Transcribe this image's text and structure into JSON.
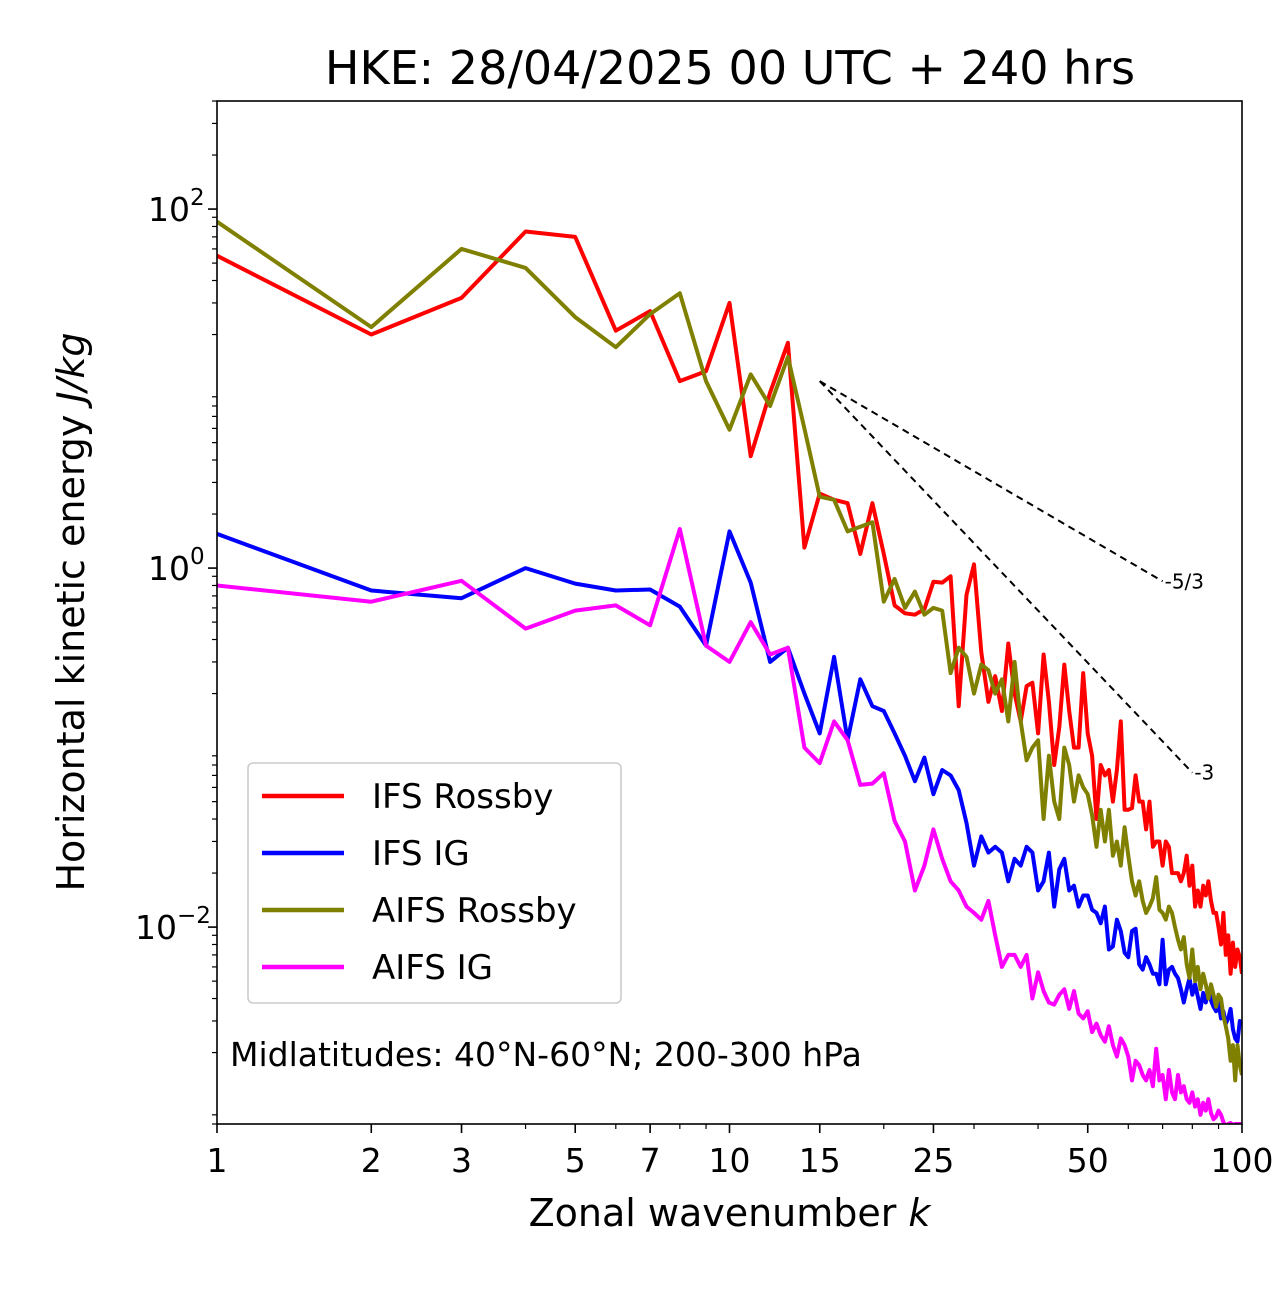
{
  "chart_data": {
    "type": "line",
    "title": "HKE: 28/04/2025 00 UTC + 240 hrs",
    "xlabel": "Zonal wavenumber",
    "xlabel_italic": "k",
    "ylabel": "Horizontal kinetic energy",
    "ylabel_italic": "J/kg",
    "xscale": "log",
    "yscale": "log",
    "xlim": [
      1,
      100
    ],
    "ylim": [
      0.0008,
      400
    ],
    "x_ticks": [
      1,
      2,
      3,
      5,
      7,
      10,
      15,
      25,
      50,
      100
    ],
    "x_tick_labels": [
      "1",
      "2",
      "3",
      "5",
      "7",
      "10",
      "15",
      "25",
      "50",
      "100"
    ],
    "y_ticks": [
      {
        "value": 100,
        "base": "10",
        "exp": "2"
      },
      {
        "value": 1,
        "base": "10",
        "exp": "0"
      },
      {
        "value": 0.01,
        "base": "10",
        "exp": "−2"
      }
    ],
    "grid": false,
    "legend_position": "lower-left",
    "annotation": "Midlatitudes: 40°N-60°N; 200-300 hPa",
    "reference_slopes": [
      {
        "label": "-5/3",
        "slope": -1.6667,
        "x": [
          15,
          70
        ],
        "y0": 11,
        "color": "#000000",
        "dashed": true
      },
      {
        "label": "-3",
        "slope": -3,
        "x": [
          15,
          80
        ],
        "y0": 11,
        "color": "#000000",
        "dashed": true
      }
    ],
    "series": [
      {
        "name": "IFS Rossby",
        "color": "#ff0000",
        "x": [
          1,
          2,
          3,
          4,
          5,
          6,
          7,
          8,
          9,
          10,
          11,
          12,
          13,
          14,
          15,
          16,
          17,
          18,
          19,
          20,
          21,
          22,
          23,
          24,
          25,
          26,
          27,
          28,
          29,
          30,
          31,
          32,
          33,
          34,
          35,
          36,
          37,
          38,
          39,
          40,
          41,
          42,
          43,
          44,
          45,
          46,
          47,
          48,
          49,
          50,
          51,
          52,
          53,
          54,
          55,
          56,
          57,
          58,
          59,
          60,
          61,
          62,
          63,
          64,
          65,
          66,
          67,
          68,
          69,
          70,
          71,
          72,
          73,
          74,
          75,
          76,
          77,
          78,
          79,
          80,
          81,
          82,
          83,
          84,
          85,
          86,
          87,
          88,
          89,
          90,
          91,
          92,
          93,
          94,
          95,
          96,
          97,
          98,
          99,
          100
        ],
        "y": [
          55,
          20,
          32,
          75,
          70,
          21,
          27,
          11,
          12.5,
          30,
          4.2,
          9.5,
          18,
          1.3,
          2.6,
          2.4,
          2.3,
          1.2,
          2.3,
          1.2,
          0.62,
          0.56,
          0.55,
          0.59,
          0.84,
          0.83,
          0.9,
          0.17,
          0.71,
          1.05,
          0.34,
          0.18,
          0.25,
          0.16,
          0.38,
          0.2,
          0.14,
          0.22,
          0.23,
          0.12,
          0.33,
          0.18,
          0.08,
          0.13,
          0.29,
          0.16,
          0.1,
          0.1,
          0.26,
          0.12,
          0.09,
          0.04,
          0.08,
          0.07,
          0.075,
          0.05,
          0.075,
          0.14,
          0.045,
          0.045,
          0.046,
          0.07,
          0.05,
          0.05,
          0.035,
          0.05,
          0.028,
          0.03,
          0.03,
          0.022,
          0.03,
          0.028,
          0.02,
          0.02,
          0.02,
          0.018,
          0.02,
          0.025,
          0.017,
          0.022,
          0.013,
          0.016,
          0.013,
          0.017,
          0.015,
          0.018,
          0.014,
          0.012,
          0.012,
          0.01,
          0.008,
          0.012,
          0.007,
          0.009,
          0.0055,
          0.0082,
          0.006,
          0.0075,
          0.0068,
          0.0055
        ]
      },
      {
        "name": "IFS IG",
        "color": "#0000ff",
        "x": [
          1,
          2,
          3,
          4,
          5,
          6,
          7,
          8,
          9,
          10,
          11,
          12,
          13,
          14,
          15,
          16,
          17,
          18,
          19,
          20,
          21,
          22,
          23,
          24,
          25,
          26,
          27,
          28,
          29,
          30,
          31,
          32,
          33,
          34,
          35,
          36,
          37,
          38,
          39,
          40,
          41,
          42,
          43,
          44,
          45,
          46,
          47,
          48,
          49,
          50,
          51,
          52,
          53,
          54,
          55,
          56,
          57,
          58,
          59,
          60,
          61,
          62,
          63,
          64,
          65,
          66,
          67,
          68,
          69,
          70,
          71,
          72,
          73,
          74,
          75,
          76,
          77,
          78,
          79,
          80,
          81,
          82,
          83,
          84,
          85,
          86,
          87,
          88,
          89,
          90,
          91,
          92,
          93,
          94,
          95,
          96,
          97,
          98,
          99,
          100
        ],
        "y": [
          1.55,
          0.75,
          0.68,
          1.0,
          0.82,
          0.75,
          0.76,
          0.61,
          0.37,
          1.6,
          0.83,
          0.3,
          0.36,
          0.2,
          0.12,
          0.32,
          0.11,
          0.24,
          0.17,
          0.16,
          0.12,
          0.09,
          0.065,
          0.088,
          0.055,
          0.075,
          0.07,
          0.058,
          0.038,
          0.022,
          0.032,
          0.026,
          0.028,
          0.026,
          0.018,
          0.024,
          0.022,
          0.028,
          0.026,
          0.016,
          0.018,
          0.026,
          0.013,
          0.021,
          0.024,
          0.016,
          0.017,
          0.013,
          0.015,
          0.015,
          0.0125,
          0.012,
          0.0105,
          0.013,
          0.0075,
          0.0078,
          0.011,
          0.0095,
          0.0072,
          0.0068,
          0.0095,
          0.0098,
          0.0062,
          0.0058,
          0.0068,
          0.0062,
          0.0055,
          0.0055,
          0.0048,
          0.0085,
          0.0048,
          0.0058,
          0.006,
          0.0055,
          0.0052,
          0.0045,
          0.0038,
          0.0045,
          0.0052,
          0.0042,
          0.0048,
          0.0041,
          0.0035,
          0.0043,
          0.0038,
          0.0045,
          0.0039,
          0.0036,
          0.0034,
          0.0038,
          0.0031,
          0.0034,
          0.0029,
          0.0031,
          0.0035,
          0.0027,
          0.0024,
          0.0023,
          0.003,
          0.0028
        ]
      },
      {
        "name": "AIFS Rossby",
        "color": "#808000",
        "x": [
          1,
          2,
          3,
          4,
          5,
          6,
          7,
          8,
          9,
          10,
          11,
          12,
          13,
          14,
          15,
          16,
          17,
          18,
          19,
          20,
          21,
          22,
          23,
          24,
          25,
          26,
          27,
          28,
          29,
          30,
          31,
          32,
          33,
          34,
          35,
          36,
          37,
          38,
          39,
          40,
          41,
          42,
          43,
          44,
          45,
          46,
          47,
          48,
          49,
          50,
          51,
          52,
          53,
          54,
          55,
          56,
          57,
          58,
          59,
          60,
          61,
          62,
          63,
          64,
          65,
          66,
          67,
          68,
          69,
          70,
          71,
          72,
          73,
          74,
          75,
          76,
          77,
          78,
          79,
          80,
          81,
          82,
          83,
          84,
          85,
          86,
          87,
          88,
          89,
          90,
          91,
          92,
          93,
          94,
          95,
          96,
          97,
          98,
          99,
          100
        ],
        "y": [
          85,
          22,
          60,
          47,
          25,
          17,
          26,
          34,
          11,
          5.9,
          12,
          8,
          15,
          6,
          2.5,
          2.4,
          1.6,
          1.7,
          1.8,
          0.65,
          0.87,
          0.6,
          0.74,
          0.55,
          0.6,
          0.58,
          0.26,
          0.36,
          0.32,
          0.2,
          0.29,
          0.27,
          0.2,
          0.24,
          0.14,
          0.3,
          0.14,
          0.085,
          0.1,
          0.11,
          0.04,
          0.09,
          0.05,
          0.04,
          0.1,
          0.08,
          0.05,
          0.07,
          0.06,
          0.055,
          0.042,
          0.028,
          0.045,
          0.03,
          0.045,
          0.025,
          0.03,
          0.022,
          0.036,
          0.025,
          0.018,
          0.015,
          0.018,
          0.014,
          0.012,
          0.013,
          0.0145,
          0.019,
          0.0125,
          0.012,
          0.011,
          0.013,
          0.012,
          0.01,
          0.0085,
          0.0075,
          0.0088,
          0.0062,
          0.0052,
          0.0075,
          0.005,
          0.006,
          0.0045,
          0.0055,
          0.0048,
          0.004,
          0.0048,
          0.0042,
          0.0036,
          0.0042,
          0.004,
          0.0032,
          0.0028,
          0.0024,
          0.0018,
          0.0022,
          0.0014,
          0.0022,
          0.0017,
          0.0015
        ]
      },
      {
        "name": "AIFS IG",
        "color": "#ff00ff",
        "x": [
          1,
          2,
          3,
          4,
          5,
          6,
          7,
          8,
          9,
          10,
          11,
          12,
          13,
          14,
          15,
          16,
          17,
          18,
          19,
          20,
          21,
          22,
          23,
          24,
          25,
          26,
          27,
          28,
          29,
          30,
          31,
          32,
          33,
          34,
          35,
          36,
          37,
          38,
          39,
          40,
          41,
          42,
          43,
          44,
          45,
          46,
          47,
          48,
          49,
          50,
          51,
          52,
          53,
          54,
          55,
          56,
          57,
          58,
          59,
          60,
          61,
          62,
          63,
          64,
          65,
          66,
          67,
          68,
          69,
          70,
          71,
          72,
          73,
          74,
          75,
          76,
          77,
          78,
          79,
          80,
          81,
          82,
          83,
          84,
          85,
          86,
          87,
          88,
          89,
          90,
          91,
          92,
          93,
          94,
          95,
          96,
          97,
          98,
          99,
          100
        ],
        "y": [
          0.8,
          0.65,
          0.85,
          0.46,
          0.58,
          0.62,
          0.48,
          1.65,
          0.37,
          0.3,
          0.5,
          0.33,
          0.36,
          0.1,
          0.082,
          0.14,
          0.11,
          0.062,
          0.063,
          0.072,
          0.039,
          0.03,
          0.016,
          0.022,
          0.035,
          0.024,
          0.018,
          0.016,
          0.013,
          0.012,
          0.011,
          0.014,
          0.009,
          0.006,
          0.007,
          0.007,
          0.006,
          0.007,
          0.004,
          0.0056,
          0.0044,
          0.0038,
          0.0037,
          0.0042,
          0.0045,
          0.0035,
          0.0044,
          0.0033,
          0.0031,
          0.0034,
          0.0026,
          0.0029,
          0.0025,
          0.0023,
          0.0028,
          0.0022,
          0.0019,
          0.0024,
          0.0022,
          0.0019,
          0.0014,
          0.0018,
          0.0017,
          0.0015,
          0.0014,
          0.0016,
          0.0013,
          0.0021,
          0.0014,
          0.0015,
          0.0011,
          0.0016,
          0.0012,
          0.0011,
          0.0015,
          0.0012,
          0.0013,
          0.0011,
          0.00105,
          0.0012,
          0.001,
          0.0011,
          0.0009,
          0.00105,
          0.00095,
          0.0011,
          0.00092,
          0.00085,
          0.00088,
          0.00095,
          0.0009,
          0.00082,
          0.00078,
          0.0008,
          0.00081,
          0.00079,
          0.0008,
          0.0008,
          0.0008,
          0.0008
        ]
      }
    ]
  }
}
